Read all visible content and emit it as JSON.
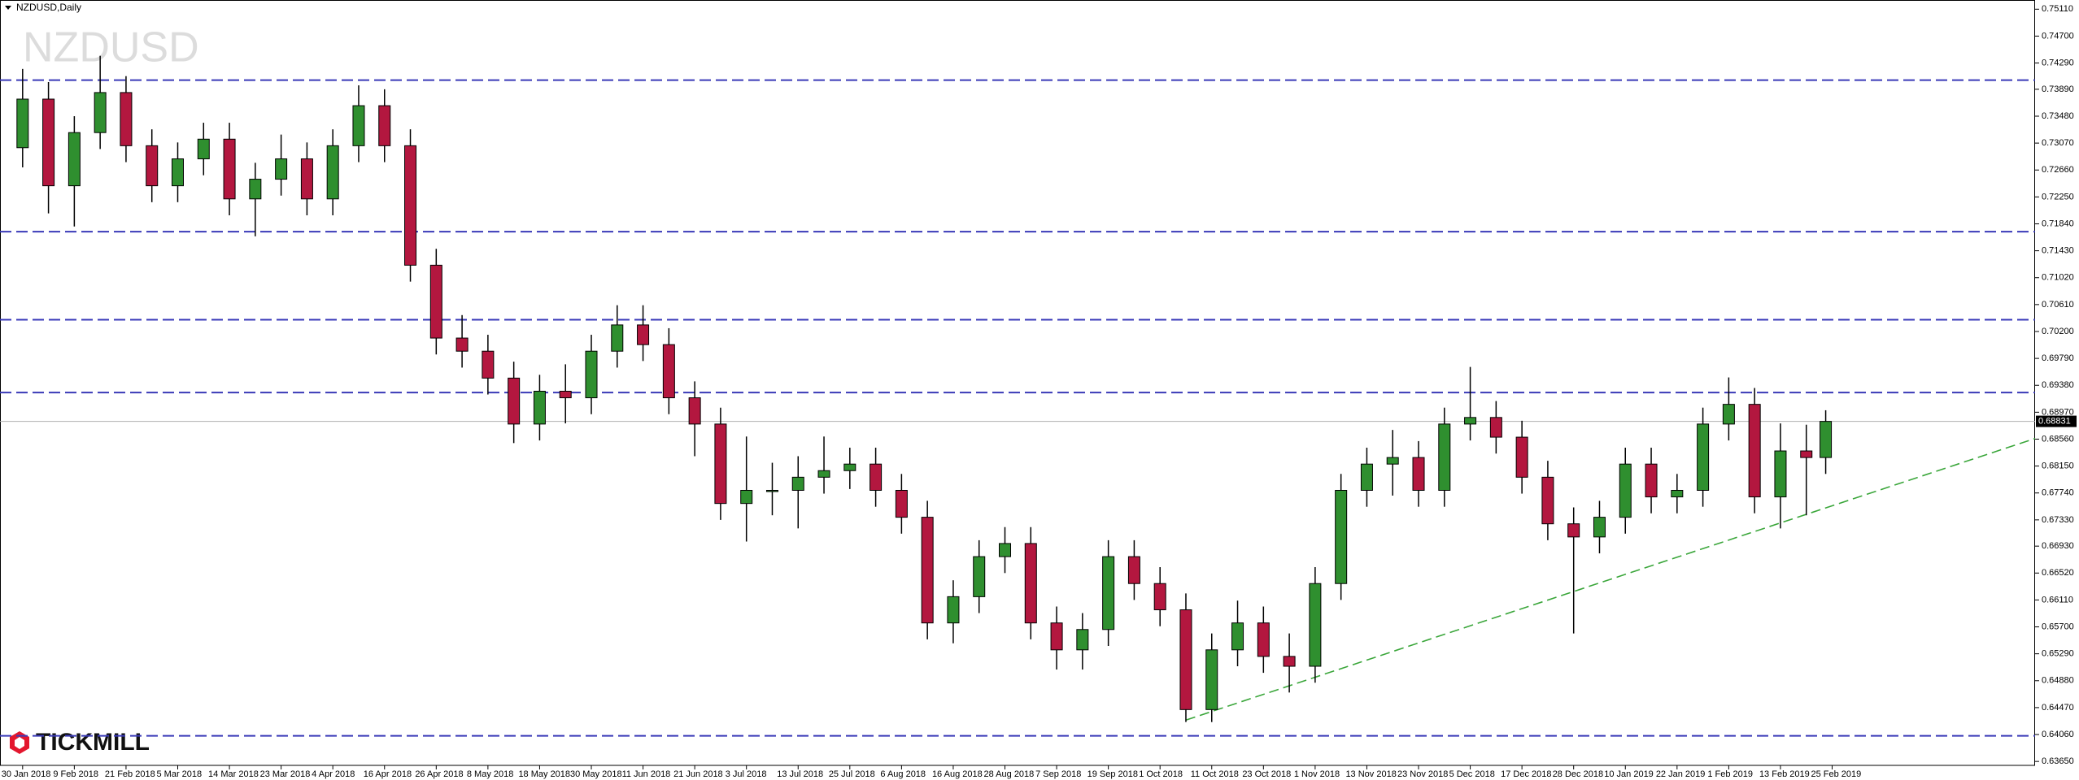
{
  "chart_data": {
    "type": "candlestick",
    "title": "NZDUSD,Daily",
    "watermark": "NZDUSD",
    "brand": "TICKMILL",
    "up_color": "#2f8f2f",
    "down_color": "#b3173f",
    "xlim": [
      -3.5,
      311.4
    ],
    "ylim": [
      0.6359,
      0.7525
    ],
    "x": [
      0,
      4,
      8,
      12,
      16,
      20,
      24,
      28,
      32,
      36,
      40,
      44,
      48,
      52,
      56,
      60,
      64,
      68,
      72,
      76,
      80,
      84,
      88,
      92,
      96,
      100,
      104,
      108,
      112,
      116,
      120,
      124,
      128,
      132,
      136,
      140,
      144,
      148,
      152,
      156,
      160,
      164,
      168,
      172,
      176,
      180,
      184,
      188,
      192,
      196,
      200,
      204,
      208,
      212,
      216,
      220,
      224,
      228,
      232,
      236,
      240,
      244,
      248,
      252,
      256,
      260,
      264,
      268,
      272,
      276,
      279
    ],
    "open": [
      0.73,
      0.7374,
      0.7242,
      0.7323,
      0.7384,
      0.7303,
      0.7242,
      0.7283,
      0.7313,
      0.7222,
      0.7252,
      0.7283,
      0.7222,
      0.7303,
      0.7364,
      0.7303,
      0.7121,
      0.701,
      0.699,
      0.6949,
      0.6879,
      0.6929,
      0.6919,
      0.699,
      0.703,
      0.7,
      0.6919,
      0.6879,
      0.6758,
      0.6778,
      0.6778,
      0.6798,
      0.6808,
      0.6818,
      0.6778,
      0.6737,
      0.6576,
      0.6616,
      0.6677,
      0.6697,
      0.6576,
      0.6535,
      0.6566,
      0.6677,
      0.6636,
      0.6596,
      0.6444,
      0.6535,
      0.6576,
      0.6525,
      0.651,
      0.6636,
      0.6778,
      0.6818,
      0.6828,
      0.6778,
      0.6879,
      0.6889,
      0.6859,
      0.6798,
      0.6727,
      0.6707,
      0.6737,
      0.6818,
      0.6768,
      0.6778,
      0.6879,
      0.6909,
      0.6768,
      0.6838,
      0.6828
    ],
    "high": [
      0.742,
      0.74,
      0.7348,
      0.744,
      0.7409,
      0.7328,
      0.7308,
      0.7338,
      0.7338,
      0.7277,
      0.732,
      0.7308,
      0.7328,
      0.7395,
      0.7389,
      0.7328,
      0.7146,
      0.7045,
      0.7015,
      0.6974,
      0.6954,
      0.697,
      0.7015,
      0.706,
      0.706,
      0.7025,
      0.6944,
      0.6904,
      0.686,
      0.682,
      0.683,
      0.686,
      0.6843,
      0.6843,
      0.6803,
      0.6762,
      0.6641,
      0.6702,
      0.6722,
      0.6722,
      0.6601,
      0.6591,
      0.6702,
      0.6702,
      0.6661,
      0.6621,
      0.656,
      0.661,
      0.6601,
      0.656,
      0.6661,
      0.6803,
      0.6843,
      0.687,
      0.6853,
      0.6904,
      0.6966,
      0.6914,
      0.6884,
      0.6823,
      0.6752,
      0.6762,
      0.6843,
      0.6843,
      0.6803,
      0.6904,
      0.695,
      0.6934,
      0.688,
      0.6878,
      0.69
    ],
    "low": [
      0.727,
      0.72,
      0.718,
      0.7298,
      0.7278,
      0.7217,
      0.7217,
      0.7258,
      0.7197,
      0.7165,
      0.7227,
      0.7197,
      0.7197,
      0.7278,
      0.7278,
      0.7096,
      0.6985,
      0.6965,
      0.6924,
      0.685,
      0.6854,
      0.688,
      0.6894,
      0.6965,
      0.6975,
      0.6894,
      0.683,
      0.6733,
      0.67,
      0.674,
      0.672,
      0.6773,
      0.678,
      0.6753,
      0.6712,
      0.6551,
      0.6545,
      0.6591,
      0.6652,
      0.6551,
      0.6505,
      0.6505,
      0.6541,
      0.6611,
      0.6571,
      0.6425,
      0.6425,
      0.651,
      0.65,
      0.647,
      0.6485,
      0.6611,
      0.6753,
      0.677,
      0.6753,
      0.6753,
      0.6854,
      0.6834,
      0.6773,
      0.6702,
      0.656,
      0.6682,
      0.6712,
      0.6743,
      0.6743,
      0.6753,
      0.6854,
      0.6743,
      0.672,
      0.674,
      0.6803
    ],
    "close": [
      0.7374,
      0.7242,
      0.7323,
      0.7384,
      0.7303,
      0.7242,
      0.7283,
      0.7313,
      0.7222,
      0.7252,
      0.7283,
      0.7222,
      0.7303,
      0.7364,
      0.7303,
      0.7121,
      0.701,
      0.699,
      0.6949,
      0.6879,
      0.6929,
      0.6919,
      0.699,
      0.703,
      0.7,
      0.6919,
      0.6879,
      0.6758,
      0.6778,
      0.6778,
      0.6798,
      0.6808,
      0.6818,
      0.6778,
      0.6737,
      0.6576,
      0.6616,
      0.6677,
      0.6697,
      0.6576,
      0.6535,
      0.6566,
      0.6677,
      0.6636,
      0.6596,
      0.6444,
      0.6535,
      0.6576,
      0.6525,
      0.651,
      0.6636,
      0.6778,
      0.6818,
      0.6828,
      0.6778,
      0.6879,
      0.6889,
      0.6859,
      0.6798,
      0.6727,
      0.6707,
      0.6737,
      0.6818,
      0.6768,
      0.6778,
      0.6879,
      0.6909,
      0.6768,
      0.6838,
      0.6828,
      0.6883
    ],
    "levels": [
      0.7403,
      0.7172,
      0.7038,
      0.6927,
      0.6404
    ],
    "level_color": "#3a3ab8",
    "trendline": {
      "x": [
        180,
        311.4
      ],
      "y": [
        0.6428,
        0.6857
      ],
      "color": "#3aa63a"
    },
    "last_price": {
      "value": 0.68831,
      "label": "0.68831"
    },
    "yticks": [
      {
        "value": 0.7511,
        "label": "0.75110"
      },
      {
        "value": 0.747,
        "label": "0.74700"
      },
      {
        "value": 0.7429,
        "label": "0.74290"
      },
      {
        "value": 0.7389,
        "label": "0.73890"
      },
      {
        "value": 0.7348,
        "label": "0.73480"
      },
      {
        "value": 0.7307,
        "label": "0.73070"
      },
      {
        "value": 0.7266,
        "label": "0.72660"
      },
      {
        "value": 0.7225,
        "label": "0.72250"
      },
      {
        "value": 0.7184,
        "label": "0.71840"
      },
      {
        "value": 0.7143,
        "label": "0.71430"
      },
      {
        "value": 0.7102,
        "label": "0.71020"
      },
      {
        "value": 0.7061,
        "label": "0.70610"
      },
      {
        "value": 0.702,
        "label": "0.70200"
      },
      {
        "value": 0.6979,
        "label": "0.69790"
      },
      {
        "value": 0.6938,
        "label": "0.69380"
      },
      {
        "value": 0.6897,
        "label": "0.68970"
      },
      {
        "value": 0.6856,
        "label": "0.68560"
      },
      {
        "value": 0.6815,
        "label": "0.68150"
      },
      {
        "value": 0.6774,
        "label": "0.67740"
      },
      {
        "value": 0.6733,
        "label": "0.67330"
      },
      {
        "value": 0.6693,
        "label": "0.66930"
      },
      {
        "value": 0.6652,
        "label": "0.66520"
      },
      {
        "value": 0.6611,
        "label": "0.66110"
      },
      {
        "value": 0.657,
        "label": "0.65700"
      },
      {
        "value": 0.6529,
        "label": "0.65290"
      },
      {
        "value": 0.6488,
        "label": "0.64880"
      },
      {
        "value": 0.6447,
        "label": "0.64470"
      },
      {
        "value": 0.6406,
        "label": "0.64060"
      },
      {
        "value": 0.6365,
        "label": "0.63650"
      }
    ],
    "xticks": [
      {
        "value": 0,
        "label": "30 Jan 2018"
      },
      {
        "value": 8,
        "label": "9 Feb 2018"
      },
      {
        "value": 16,
        "label": "21 Feb 2018"
      },
      {
        "value": 24,
        "label": "5 Mar 2018"
      },
      {
        "value": 32,
        "label": "14 Mar 2018"
      },
      {
        "value": 40,
        "label": "23 Mar 2018"
      },
      {
        "value": 48,
        "label": "4 Apr 2018"
      },
      {
        "value": 56,
        "label": "16 Apr 2018"
      },
      {
        "value": 64,
        "label": "26 Apr 2018"
      },
      {
        "value": 72,
        "label": "8 May 2018"
      },
      {
        "value": 80,
        "label": "18 May 2018"
      },
      {
        "value": 88,
        "label": "30 May 2018"
      },
      {
        "value": 96,
        "label": "11 Jun 2018"
      },
      {
        "value": 104,
        "label": "21 Jun 2018"
      },
      {
        "value": 112,
        "label": "3 Jul 2018"
      },
      {
        "value": 120,
        "label": "13 Jul 2018"
      },
      {
        "value": 128,
        "label": "25 Jul 2018"
      },
      {
        "value": 136,
        "label": "6 Aug 2018"
      },
      {
        "value": 144,
        "label": "16 Aug 2018"
      },
      {
        "value": 152,
        "label": "28 Aug 2018"
      },
      {
        "value": 160,
        "label": "7 Sep 2018"
      },
      {
        "value": 168,
        "label": "19 Sep 2018"
      },
      {
        "value": 176,
        "label": "1 Oct 2018"
      },
      {
        "value": 184,
        "label": "11 Oct 2018"
      },
      {
        "value": 192,
        "label": "23 Oct 2018"
      },
      {
        "value": 200,
        "label": "1 Nov 2018"
      },
      {
        "value": 208,
        "label": "13 Nov 2018"
      },
      {
        "value": 216,
        "label": "23 Nov 2018"
      },
      {
        "value": 224,
        "label": "5 Dec 2018"
      },
      {
        "value": 232,
        "label": "17 Dec 2018"
      },
      {
        "value": 240,
        "label": "28 Dec 2018"
      },
      {
        "value": 248,
        "label": "10 Jan 2019"
      },
      {
        "value": 256,
        "label": "22 Jan 2019"
      },
      {
        "value": 264,
        "label": "1 Feb 2019"
      },
      {
        "value": 272,
        "label": "13 Feb 2019"
      },
      {
        "value": 280,
        "label": "25 Feb 2019"
      }
    ]
  }
}
